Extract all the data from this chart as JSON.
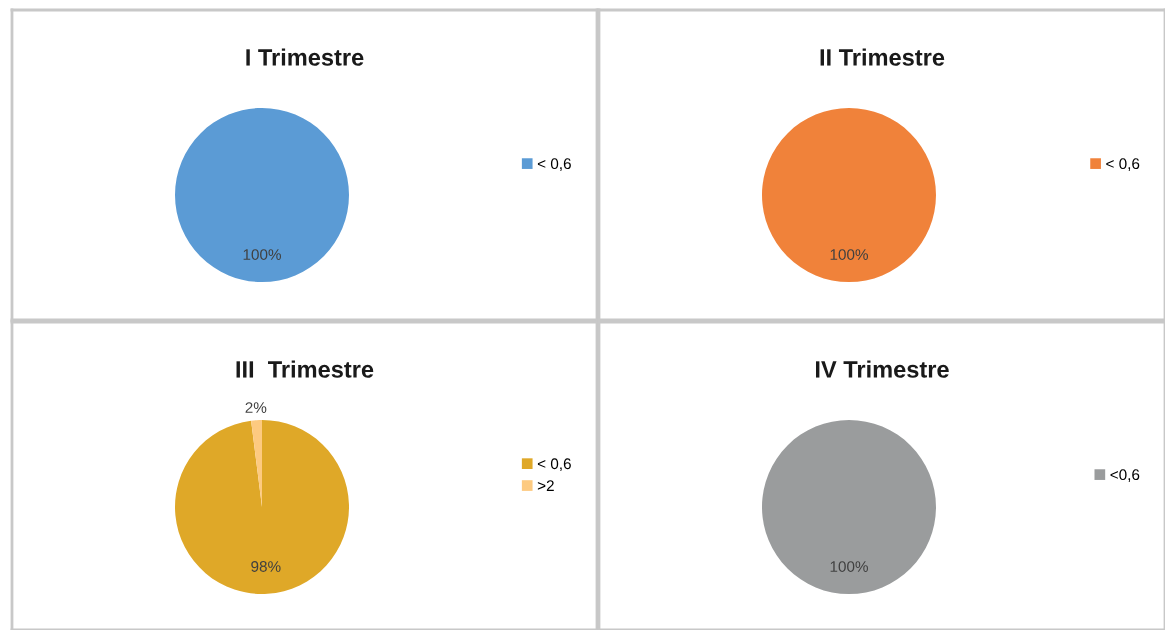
{
  "chart_data": [
    {
      "type": "pie",
      "title": "I Trimestre",
      "categories": [
        "< 0,6"
      ],
      "values": [
        100
      ],
      "colors": [
        "#5b9bd5"
      ],
      "value_labels": [
        "100%"
      ],
      "legend": "right"
    },
    {
      "type": "pie",
      "title": "II Trimestre",
      "categories": [
        "< 0,6"
      ],
      "values": [
        100
      ],
      "colors": [
        "#f0823a"
      ],
      "value_labels": [
        "100%"
      ],
      "legend": "right"
    },
    {
      "type": "pie",
      "title": "III  Trimestre",
      "categories": [
        "< 0,6",
        ">2"
      ],
      "values": [
        98,
        2
      ],
      "colors": [
        "#dfa828",
        "#fdca80"
      ],
      "value_labels": [
        "98%",
        "2%"
      ],
      "legend": "right"
    },
    {
      "type": "pie",
      "title": "IV Trimestre",
      "categories": [
        "<0,6"
      ],
      "values": [
        100
      ],
      "colors": [
        "#9a9c9d"
      ],
      "value_labels": [
        "100%"
      ],
      "legend": "right"
    }
  ]
}
